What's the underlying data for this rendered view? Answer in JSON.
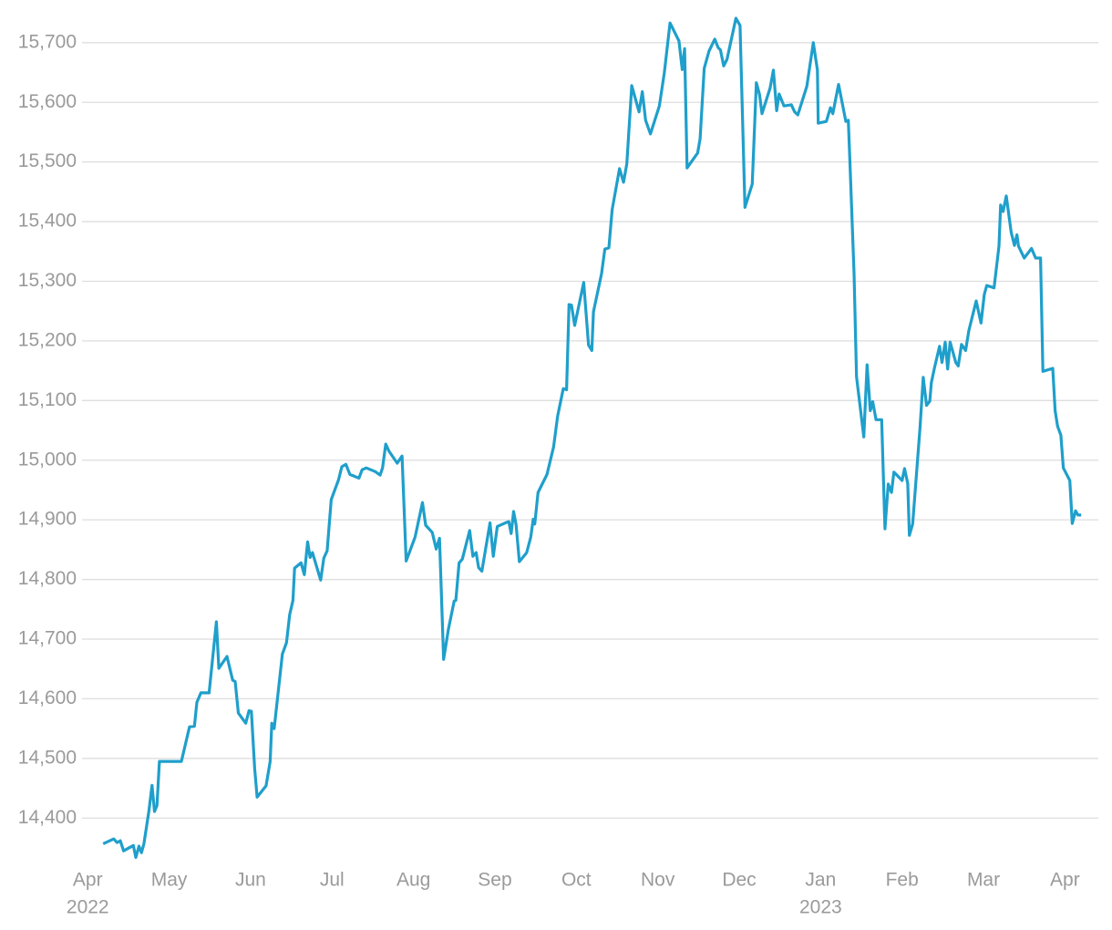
{
  "chart_data": {
    "type": "line",
    "x": [
      0.19,
      0.32,
      0.36,
      0.4,
      0.44,
      0.56,
      0.59,
      0.63,
      0.66,
      0.69,
      0.75,
      0.79,
      0.82,
      0.85,
      0.88,
      1.15,
      1.25,
      1.31,
      1.34,
      1.39,
      1.49,
      1.58,
      1.61,
      1.71,
      1.78,
      1.81,
      1.85,
      1.94,
      1.98,
      2.01,
      2.05,
      2.08,
      2.19,
      2.24,
      2.26,
      2.29,
      2.39,
      2.44,
      2.48,
      2.52,
      2.54,
      2.62,
      2.66,
      2.7,
      2.73,
      2.76,
      2.86,
      2.9,
      2.94,
      2.99,
      3.08,
      3.12,
      3.17,
      3.22,
      3.33,
      3.37,
      3.42,
      3.53,
      3.59,
      3.62,
      3.66,
      3.7,
      3.8,
      3.86,
      3.91,
      4.02,
      4.11,
      4.15,
      4.23,
      4.28,
      4.32,
      4.37,
      4.43,
      4.5,
      4.52,
      4.56,
      4.6,
      4.69,
      4.73,
      4.77,
      4.8,
      4.84,
      4.94,
      4.98,
      5.03,
      5.13,
      5.17,
      5.2,
      5.23,
      5.26,
      5.3,
      5.39,
      5.44,
      5.47,
      5.49,
      5.53,
      5.64,
      5.72,
      5.77,
      5.84,
      5.88,
      5.91,
      5.94,
      5.98,
      6.09,
      6.15,
      6.19,
      6.21,
      6.31,
      6.35,
      6.4,
      6.44,
      6.53,
      6.58,
      6.62,
      6.68,
      6.77,
      6.81,
      6.85,
      6.91,
      7.02,
      7.08,
      7.15,
      7.26,
      7.3,
      7.33,
      7.36,
      7.49,
      7.52,
      7.57,
      7.63,
      7.7,
      7.74,
      7.77,
      7.81,
      7.85,
      7.96,
      8.01,
      8.07,
      8.16,
      8.21,
      8.25,
      8.28,
      8.38,
      8.42,
      8.46,
      8.49,
      8.55,
      8.64,
      8.68,
      8.72,
      8.83,
      8.91,
      8.96,
      8.97,
      9.07,
      9.12,
      9.15,
      9.22,
      9.31,
      9.34,
      9.36,
      9.41,
      9.44,
      9.53,
      9.57,
      9.61,
      9.64,
      9.68,
      9.75,
      9.79,
      9.83,
      9.87,
      9.9,
      10.0,
      10.03,
      10.07,
      10.09,
      10.13,
      10.22,
      10.26,
      10.3,
      10.34,
      10.36,
      10.4,
      10.46,
      10.49,
      10.53,
      10.56,
      10.59,
      10.66,
      10.69,
      10.73,
      10.78,
      10.82,
      10.91,
      10.97,
      11.01,
      11.04,
      11.13,
      11.19,
      11.21,
      11.24,
      11.28,
      11.34,
      11.38,
      11.41,
      11.43,
      11.5,
      11.59,
      11.64,
      11.7,
      11.73,
      11.85,
      11.88,
      11.91,
      11.95,
      11.98,
      12.06,
      12.09,
      12.13,
      12.16,
      12.2
    ],
    "values": [
      14357,
      14365,
      14359,
      14362,
      14345,
      14354,
      14334,
      14353,
      14342,
      14357,
      14411,
      14455,
      14411,
      14421,
      14495,
      14495,
      14553,
      14554,
      14594,
      14610,
      14610,
      14729,
      14651,
      14671,
      14631,
      14629,
      14576,
      14559,
      14580,
      14579,
      14483,
      14435,
      14454,
      14495,
      14559,
      14550,
      14675,
      14694,
      14741,
      14765,
      14819,
      14828,
      14808,
      14863,
      14837,
      14845,
      14799,
      14836,
      14848,
      14934,
      14967,
      14989,
      14993,
      14976,
      14970,
      14984,
      14987,
      14981,
      14975,
      14987,
      15027,
      15015,
      14995,
      15007,
      14831,
      14871,
      14929,
      14891,
      14879,
      14851,
      14869,
      14666,
      14717,
      14764,
      14765,
      14828,
      14834,
      14882,
      14839,
      14845,
      14820,
      14814,
      14895,
      14839,
      14889,
      14895,
      14897,
      14877,
      14914,
      14892,
      14830,
      14845,
      14871,
      14901,
      14893,
      14946,
      14976,
      15022,
      15074,
      15120,
      15118,
      15261,
      15260,
      15226,
      15298,
      15193,
      15184,
      15249,
      15313,
      15354,
      15356,
      15420,
      15489,
      15466,
      15497,
      15628,
      15584,
      15618,
      15570,
      15547,
      15594,
      15649,
      15733,
      15703,
      15655,
      15690,
      15490,
      15515,
      15539,
      15657,
      15686,
      15706,
      15692,
      15688,
      15661,
      15672,
      15741,
      15729,
      15424,
      15463,
      15633,
      15613,
      15581,
      15624,
      15654,
      15586,
      15614,
      15594,
      15596,
      15584,
      15579,
      15627,
      15700,
      15654,
      15565,
      15568,
      15591,
      15581,
      15630,
      15568,
      15570,
      15499,
      15313,
      15140,
      15039,
      15160,
      15083,
      15098,
      15068,
      15068,
      14885,
      14960,
      14946,
      14980,
      14966,
      14986,
      14961,
      14874,
      14893,
      15053,
      15139,
      15092,
      15099,
      15130,
      15156,
      15191,
      15164,
      15198,
      15153,
      15198,
      15164,
      15158,
      15194,
      15184,
      15217,
      15267,
      15230,
      15278,
      15293,
      15289,
      15359,
      15428,
      15417,
      15443,
      15382,
      15360,
      15378,
      15359,
      15339,
      15355,
      15339,
      15339,
      15149,
      15154,
      15083,
      15057,
      15042,
      14987,
      14966,
      14894,
      14915,
      14908,
      14908
    ],
    "color": "#1f9fcb",
    "xlim": [
      -0.07,
      12.41
    ],
    "xticks": [
      {
        "value": 0,
        "label": "Apr"
      },
      {
        "value": 1,
        "label": "May"
      },
      {
        "value": 2,
        "label": "Jun"
      },
      {
        "value": 3,
        "label": "Jul"
      },
      {
        "value": 4,
        "label": "Aug"
      },
      {
        "value": 5,
        "label": "Sep"
      },
      {
        "value": 6,
        "label": "Oct"
      },
      {
        "value": 7,
        "label": "Nov"
      },
      {
        "value": 8,
        "label": "Dec"
      },
      {
        "value": 9,
        "label": "Jan"
      },
      {
        "value": 10,
        "label": "Feb"
      },
      {
        "value": 11,
        "label": "Mar"
      },
      {
        "value": 12,
        "label": "Apr"
      }
    ],
    "x_year_labels": [
      {
        "value": 0,
        "label": "2022"
      },
      {
        "value": 9,
        "label": "2023"
      }
    ],
    "ylim": [
      14327,
      15741
    ],
    "yticks": [
      {
        "value": 14400,
        "label": "14,400"
      },
      {
        "value": 14500,
        "label": "14,500"
      },
      {
        "value": 14600,
        "label": "14,600"
      },
      {
        "value": 14700,
        "label": "14,700"
      },
      {
        "value": 14800,
        "label": "14,800"
      },
      {
        "value": 14900,
        "label": "14,900"
      },
      {
        "value": 15000,
        "label": "15,000"
      },
      {
        "value": 15100,
        "label": "15,100"
      },
      {
        "value": 15200,
        "label": "15,200"
      },
      {
        "value": 15300,
        "label": "15,300"
      },
      {
        "value": 15400,
        "label": "15,400"
      },
      {
        "value": 15500,
        "label": "15,500"
      },
      {
        "value": 15600,
        "label": "15,600"
      },
      {
        "value": 15700,
        "label": "15,700"
      }
    ],
    "grid": true
  }
}
